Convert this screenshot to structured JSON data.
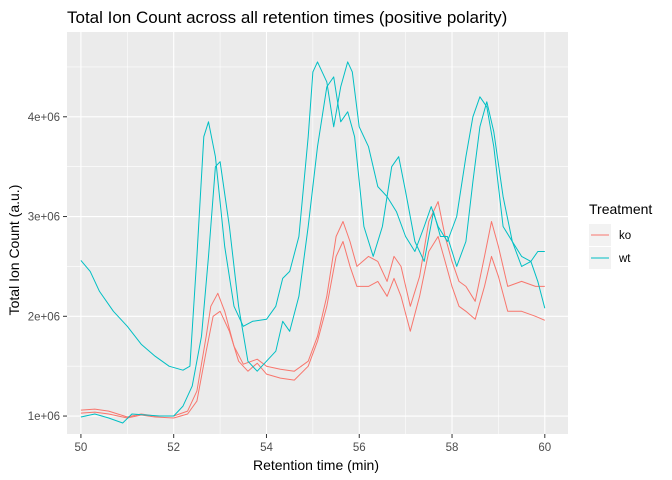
{
  "chart_data": {
    "type": "line",
    "title": "Total Ion Count across all retention times (positive polarity)",
    "xlabel": "Retention time (min)",
    "ylabel": "Total Ion Count (a.u.)",
    "xlim": [
      49.7,
      60.5
    ],
    "ylim": [
      820000,
      4850000
    ],
    "x_ticks": [
      50,
      52,
      54,
      56,
      58,
      60
    ],
    "x_tick_labels": [
      "50",
      "52",
      "54",
      "56",
      "58",
      "60"
    ],
    "y_ticks": [
      1000000,
      2000000,
      3000000,
      4000000
    ],
    "y_tick_labels": [
      "1e+06",
      "2e+06",
      "3e+06",
      "4e+06"
    ],
    "grid": true,
    "legend": {
      "title": "Treatment",
      "position": "right"
    },
    "colors": {
      "ko": "#F8766D",
      "wt": "#00BFC4",
      "panel": "#EBEBEB",
      "grid": "#FFFFFF"
    },
    "series": [
      {
        "name": "ko",
        "group": "ko",
        "points": [
          [
            50,
            1060000.0
          ],
          [
            50.3,
            1070000.0
          ],
          [
            50.6,
            1050000.0
          ],
          [
            51,
            990000.0
          ],
          [
            51.3,
            1020000.0
          ],
          [
            51.6,
            1000000.0
          ],
          [
            52,
            1000000.0
          ],
          [
            52.3,
            1050000.0
          ],
          [
            52.5,
            1250000.0
          ],
          [
            52.7,
            1800000.0
          ],
          [
            52.8,
            2100000.0
          ],
          [
            52.95,
            2230000.0
          ],
          [
            53.1,
            2050000.0
          ],
          [
            53.3,
            1700000.0
          ],
          [
            53.5,
            1520000.0
          ],
          [
            53.8,
            1570000.0
          ],
          [
            54,
            1500000.0
          ],
          [
            54.3,
            1470000.0
          ],
          [
            54.6,
            1450000.0
          ],
          [
            54.9,
            1550000.0
          ],
          [
            55.1,
            1800000.0
          ],
          [
            55.3,
            2200000.0
          ],
          [
            55.5,
            2800000.0
          ],
          [
            55.65,
            2950000.0
          ],
          [
            55.8,
            2750000.0
          ],
          [
            55.95,
            2500000.0
          ],
          [
            56.2,
            2600000.0
          ],
          [
            56.4,
            2550000.0
          ],
          [
            56.6,
            2350000.0
          ],
          [
            56.75,
            2600000.0
          ],
          [
            56.9,
            2500000.0
          ],
          [
            57.1,
            2100000.0
          ],
          [
            57.3,
            2400000.0
          ],
          [
            57.5,
            2950000.0
          ],
          [
            57.7,
            3150000.0
          ],
          [
            57.85,
            2800000.0
          ],
          [
            58.0,
            2550000.0
          ],
          [
            58.15,
            2350000.0
          ],
          [
            58.3,
            2300000.0
          ],
          [
            58.5,
            2150000.0
          ],
          [
            58.7,
            2600000.0
          ],
          [
            58.85,
            2950000.0
          ],
          [
            59.0,
            2700000.0
          ],
          [
            59.2,
            2300000.0
          ],
          [
            59.5,
            2350000.0
          ],
          [
            59.8,
            2300000.0
          ],
          [
            60,
            2300000.0
          ]
        ]
      },
      {
        "name": "ko",
        "group": "ko",
        "points": [
          [
            50,
            1030000.0
          ],
          [
            50.3,
            1040000.0
          ],
          [
            50.6,
            1020000.0
          ],
          [
            51,
            980000.0
          ],
          [
            51.3,
            1010000.0
          ],
          [
            51.6,
            990000.0
          ],
          [
            52,
            980000.0
          ],
          [
            52.3,
            1020000.0
          ],
          [
            52.5,
            1150000.0
          ],
          [
            52.7,
            1650000.0
          ],
          [
            52.85,
            2000000.0
          ],
          [
            53.0,
            2050000.0
          ],
          [
            53.2,
            1850000.0
          ],
          [
            53.4,
            1550000.0
          ],
          [
            53.6,
            1450000.0
          ],
          [
            53.8,
            1530000.0
          ],
          [
            54,
            1420000.0
          ],
          [
            54.3,
            1380000.0
          ],
          [
            54.6,
            1360000.0
          ],
          [
            54.9,
            1500000.0
          ],
          [
            55.1,
            1750000.0
          ],
          [
            55.3,
            2100000.0
          ],
          [
            55.5,
            2600000.0
          ],
          [
            55.65,
            2750000.0
          ],
          [
            55.8,
            2500000.0
          ],
          [
            55.95,
            2300000.0
          ],
          [
            56.2,
            2300000.0
          ],
          [
            56.4,
            2350000.0
          ],
          [
            56.6,
            2200000.0
          ],
          [
            56.75,
            2380000.0
          ],
          [
            56.9,
            2200000.0
          ],
          [
            57.1,
            1850000.0
          ],
          [
            57.3,
            2200000.0
          ],
          [
            57.5,
            2650000.0
          ],
          [
            57.7,
            2800000.0
          ],
          [
            57.85,
            2550000.0
          ],
          [
            58.0,
            2300000.0
          ],
          [
            58.15,
            2100000.0
          ],
          [
            58.3,
            2050000.0
          ],
          [
            58.5,
            1970000.0
          ],
          [
            58.7,
            2300000.0
          ],
          [
            58.85,
            2600000.0
          ],
          [
            59.0,
            2400000.0
          ],
          [
            59.2,
            2050000.0
          ],
          [
            59.5,
            2050000.0
          ],
          [
            59.8,
            2000000.0
          ],
          [
            60,
            1960000.0
          ]
        ]
      },
      {
        "name": "wt",
        "group": "wt",
        "points": [
          [
            50,
            2560000.0
          ],
          [
            50.2,
            2450000.0
          ],
          [
            50.4,
            2250000.0
          ],
          [
            50.7,
            2050000.0
          ],
          [
            51,
            1900000.0
          ],
          [
            51.3,
            1720000.0
          ],
          [
            51.6,
            1600000.0
          ],
          [
            51.9,
            1500000.0
          ],
          [
            52.2,
            1460000.0
          ],
          [
            52.35,
            1500000.0
          ],
          [
            52.5,
            2600000.0
          ],
          [
            52.65,
            3800000.0
          ],
          [
            52.75,
            3950000.0
          ],
          [
            52.9,
            3600000.0
          ],
          [
            53.1,
            2700000.0
          ],
          [
            53.3,
            2100000.0
          ],
          [
            53.5,
            1900000.0
          ],
          [
            53.7,
            1950000.0
          ],
          [
            54,
            1970000.0
          ],
          [
            54.2,
            2100000.0
          ],
          [
            54.35,
            2380000.0
          ],
          [
            54.5,
            2450000.0
          ],
          [
            54.7,
            2800000.0
          ],
          [
            54.9,
            3800000.0
          ],
          [
            55.0,
            4450000.0
          ],
          [
            55.1,
            4550000.0
          ],
          [
            55.3,
            4350000.0
          ],
          [
            55.45,
            3900000.0
          ],
          [
            55.6,
            4300000.0
          ],
          [
            55.75,
            4550000.0
          ],
          [
            55.85,
            4450000.0
          ],
          [
            56.0,
            3900000.0
          ],
          [
            56.2,
            3700000.0
          ],
          [
            56.4,
            3300000.0
          ],
          [
            56.6,
            3200000.0
          ],
          [
            56.8,
            3050000.0
          ],
          [
            57.0,
            2800000.0
          ],
          [
            57.2,
            2650000.0
          ],
          [
            57.4,
            2900000.0
          ],
          [
            57.55,
            3100000.0
          ],
          [
            57.7,
            2900000.0
          ],
          [
            57.9,
            2750000.0
          ],
          [
            58.1,
            3000000.0
          ],
          [
            58.3,
            3600000.0
          ],
          [
            58.45,
            4000000.0
          ],
          [
            58.6,
            4200000.0
          ],
          [
            58.75,
            4100000.0
          ],
          [
            58.9,
            3700000.0
          ],
          [
            59.1,
            2900000.0
          ],
          [
            59.3,
            2750000.0
          ],
          [
            59.5,
            2600000.0
          ],
          [
            59.7,
            2550000.0
          ],
          [
            59.85,
            2350000.0
          ],
          [
            60,
            2080000.0
          ]
        ]
      },
      {
        "name": "wt",
        "group": "wt",
        "points": [
          [
            50,
            990000.0
          ],
          [
            50.3,
            1020000.0
          ],
          [
            50.6,
            980000.0
          ],
          [
            50.9,
            930000.0
          ],
          [
            51.1,
            1020000.0
          ],
          [
            51.4,
            1010000.0
          ],
          [
            51.7,
            1000000.0
          ],
          [
            52,
            1000000.0
          ],
          [
            52.2,
            1100000.0
          ],
          [
            52.4,
            1300000.0
          ],
          [
            52.6,
            1800000.0
          ],
          [
            52.75,
            2600000.0
          ],
          [
            52.9,
            3500000.0
          ],
          [
            53.0,
            3550000.0
          ],
          [
            53.2,
            2900000.0
          ],
          [
            53.4,
            2100000.0
          ],
          [
            53.6,
            1550000.0
          ],
          [
            53.8,
            1450000.0
          ],
          [
            54,
            1550000.0
          ],
          [
            54.2,
            1650000.0
          ],
          [
            54.35,
            1950000.0
          ],
          [
            54.5,
            1850000.0
          ],
          [
            54.7,
            2200000.0
          ],
          [
            54.9,
            2900000.0
          ],
          [
            55.1,
            3700000.0
          ],
          [
            55.3,
            4300000.0
          ],
          [
            55.45,
            4400000.0
          ],
          [
            55.6,
            3950000.0
          ],
          [
            55.75,
            4050000.0
          ],
          [
            55.9,
            3800000.0
          ],
          [
            56.1,
            2900000.0
          ],
          [
            56.3,
            2600000.0
          ],
          [
            56.5,
            2900000.0
          ],
          [
            56.7,
            3500000.0
          ],
          [
            56.85,
            3600000.0
          ],
          [
            57.0,
            3250000.0
          ],
          [
            57.2,
            2750000.0
          ],
          [
            57.4,
            2550000.0
          ],
          [
            57.6,
            3050000.0
          ],
          [
            57.75,
            2800000.0
          ],
          [
            57.9,
            2800000.0
          ],
          [
            58.1,
            2500000.0
          ],
          [
            58.3,
            2750000.0
          ],
          [
            58.45,
            3350000.0
          ],
          [
            58.6,
            3900000.0
          ],
          [
            58.75,
            4150000.0
          ],
          [
            58.9,
            3850000.0
          ],
          [
            59.1,
            3200000.0
          ],
          [
            59.3,
            2750000.0
          ],
          [
            59.5,
            2500000.0
          ],
          [
            59.7,
            2550000.0
          ],
          [
            59.85,
            2650000.0
          ],
          [
            60,
            2650000.0
          ]
        ]
      }
    ]
  }
}
